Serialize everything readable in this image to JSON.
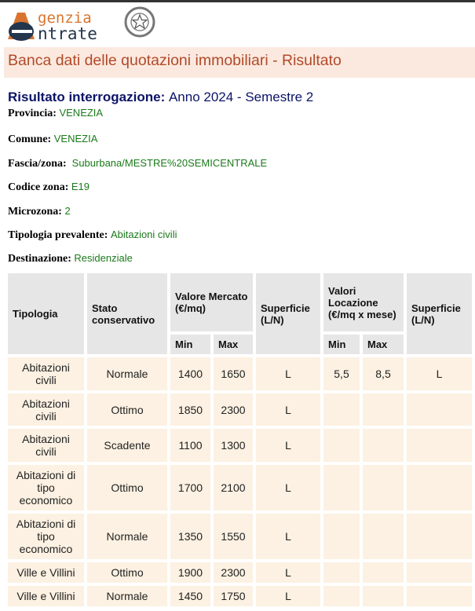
{
  "header": {
    "logo_text_1": "genzia",
    "logo_text_2": "ntrate",
    "banner_title": "Banca dati delle quotazioni immobiliari - Risultato"
  },
  "result": {
    "label": "Risultato interrogazione:",
    "value": "Anno 2024 - Semestre 2"
  },
  "fields": [
    {
      "label": "Provincia:",
      "value": "VENEZIA"
    },
    {
      "label": "Comune:",
      "value": "VENEZIA"
    },
    {
      "label": "Fascia/zona:",
      "value": "Suburbana/MESTRE%20SEMICENTRALE"
    },
    {
      "label": "Codice zona:",
      "value": "E19"
    },
    {
      "label": "Microzona:",
      "value": "2"
    },
    {
      "label": "Tipologia prevalente:",
      "value": "Abitazioni civili"
    },
    {
      "label": "Destinazione:",
      "value": "Residenziale"
    }
  ],
  "table": {
    "headers": {
      "tipologia": "Tipologia",
      "stato": "Stato conservativo",
      "valore": "Valore Mercato (€/mq)",
      "superficie1": "Superficie (L/N)",
      "locazione": "Valori Locazione (€/mq x mese)",
      "superficie2": "Superficie (L/N)",
      "min": "Min",
      "max": "Max"
    },
    "rows": [
      [
        "Abitazioni civili",
        "Normale",
        "1400",
        "1650",
        "L",
        "5,5",
        "8,5",
        "L"
      ],
      [
        "Abitazioni civili",
        "Ottimo",
        "1850",
        "2300",
        "L",
        "",
        "",
        ""
      ],
      [
        "Abitazioni civili",
        "Scadente",
        "1100",
        "1300",
        "L",
        "",
        "",
        ""
      ],
      [
        "Abitazioni di tipo economico",
        "Ottimo",
        "1700",
        "2100",
        "L",
        "",
        "",
        ""
      ],
      [
        "Abitazioni di tipo economico",
        "Normale",
        "1350",
        "1550",
        "L",
        "",
        "",
        ""
      ],
      [
        "Ville e Villini",
        "Ottimo",
        "1900",
        "2300",
        "L",
        "",
        "",
        ""
      ],
      [
        "Ville e Villini",
        "Normale",
        "1450",
        "1750",
        "L",
        "",
        "",
        ""
      ]
    ]
  }
}
